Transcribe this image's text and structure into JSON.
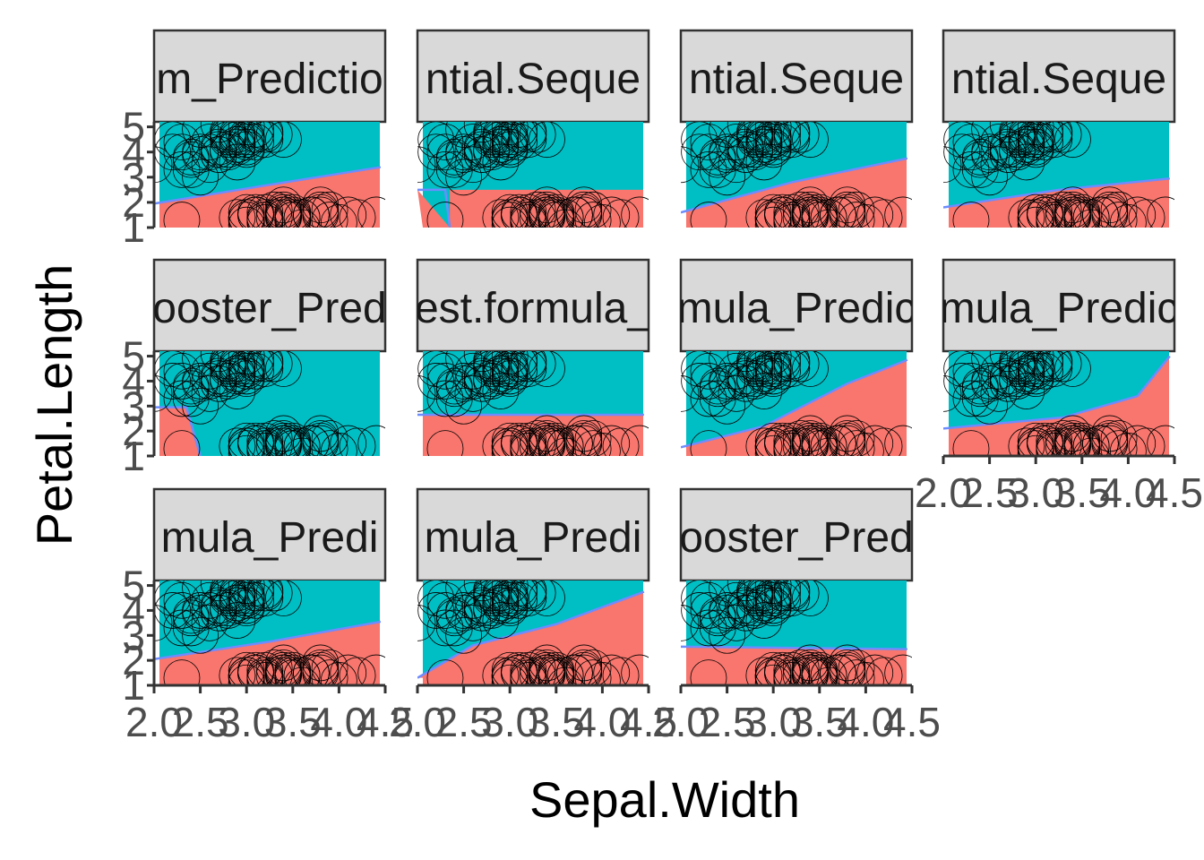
{
  "chart_data": {
    "type": "scatter",
    "xlabel": "Sepal.Width",
    "ylabel": "Petal.Length",
    "xlim": [
      2.0,
      4.5
    ],
    "ylim": [
      1,
      5.2
    ],
    "x_ticks": [
      "2.0",
      "2.5",
      "3.0",
      "3.5",
      "4.0",
      "4.5"
    ],
    "y_ticks": [
      "1",
      "2",
      "3",
      "4",
      "5"
    ],
    "colors": {
      "region_a": "#00BFC4",
      "region_b": "#F8766D",
      "boundary": "#6C8CFF",
      "strip": "#D9D9D9",
      "axis": "#333333",
      "tick_label": "#4D4D4D"
    },
    "points": [
      {
        "x": 3.5,
        "y": 1.4
      },
      {
        "x": 3.0,
        "y": 1.4
      },
      {
        "x": 3.2,
        "y": 1.3
      },
      {
        "x": 3.1,
        "y": 1.5
      },
      {
        "x": 3.6,
        "y": 1.4
      },
      {
        "x": 3.9,
        "y": 1.7
      },
      {
        "x": 3.4,
        "y": 1.4
      },
      {
        "x": 3.4,
        "y": 1.5
      },
      {
        "x": 2.9,
        "y": 1.4
      },
      {
        "x": 3.1,
        "y": 1.5
      },
      {
        "x": 3.7,
        "y": 1.5
      },
      {
        "x": 3.4,
        "y": 1.6
      },
      {
        "x": 3.0,
        "y": 1.4
      },
      {
        "x": 3.0,
        "y": 1.1
      },
      {
        "x": 4.0,
        "y": 1.2
      },
      {
        "x": 4.4,
        "y": 1.5
      },
      {
        "x": 3.9,
        "y": 1.3
      },
      {
        "x": 3.5,
        "y": 1.4
      },
      {
        "x": 3.8,
        "y": 1.7
      },
      {
        "x": 3.8,
        "y": 1.5
      },
      {
        "x": 3.4,
        "y": 1.7
      },
      {
        "x": 3.7,
        "y": 1.5
      },
      {
        "x": 3.6,
        "y": 1.0
      },
      {
        "x": 3.3,
        "y": 1.7
      },
      {
        "x": 3.4,
        "y": 1.9
      },
      {
        "x": 3.0,
        "y": 1.6
      },
      {
        "x": 3.4,
        "y": 1.6
      },
      {
        "x": 3.5,
        "y": 1.5
      },
      {
        "x": 3.4,
        "y": 1.4
      },
      {
        "x": 3.2,
        "y": 1.6
      },
      {
        "x": 3.1,
        "y": 1.6
      },
      {
        "x": 3.4,
        "y": 1.5
      },
      {
        "x": 4.1,
        "y": 1.5
      },
      {
        "x": 4.2,
        "y": 1.4
      },
      {
        "x": 3.1,
        "y": 1.5
      },
      {
        "x": 3.2,
        "y": 1.2
      },
      {
        "x": 3.5,
        "y": 1.3
      },
      {
        "x": 3.6,
        "y": 1.4
      },
      {
        "x": 3.0,
        "y": 1.3
      },
      {
        "x": 3.4,
        "y": 1.5
      },
      {
        "x": 3.5,
        "y": 1.3
      },
      {
        "x": 2.3,
        "y": 1.3
      },
      {
        "x": 3.2,
        "y": 1.3
      },
      {
        "x": 3.5,
        "y": 1.6
      },
      {
        "x": 3.8,
        "y": 1.9
      },
      {
        "x": 3.0,
        "y": 1.4
      },
      {
        "x": 3.8,
        "y": 1.6
      },
      {
        "x": 3.2,
        "y": 1.4
      },
      {
        "x": 3.7,
        "y": 1.5
      },
      {
        "x": 3.3,
        "y": 1.4
      },
      {
        "x": 3.2,
        "y": 4.7
      },
      {
        "x": 3.2,
        "y": 4.5
      },
      {
        "x": 3.1,
        "y": 4.9
      },
      {
        "x": 2.3,
        "y": 4.0
      },
      {
        "x": 2.8,
        "y": 4.6
      },
      {
        "x": 2.8,
        "y": 4.5
      },
      {
        "x": 3.3,
        "y": 4.7
      },
      {
        "x": 2.4,
        "y": 3.3
      },
      {
        "x": 2.9,
        "y": 4.6
      },
      {
        "x": 2.7,
        "y": 3.9
      },
      {
        "x": 2.0,
        "y": 3.5
      },
      {
        "x": 3.0,
        "y": 4.2
      },
      {
        "x": 2.2,
        "y": 4.0
      },
      {
        "x": 2.9,
        "y": 4.7
      },
      {
        "x": 2.9,
        "y": 3.6
      },
      {
        "x": 3.1,
        "y": 4.4
      },
      {
        "x": 3.0,
        "y": 4.5
      },
      {
        "x": 2.7,
        "y": 4.1
      },
      {
        "x": 2.2,
        "y": 4.5
      },
      {
        "x": 2.5,
        "y": 3.9
      },
      {
        "x": 3.2,
        "y": 4.8
      },
      {
        "x": 2.8,
        "y": 4.0
      },
      {
        "x": 2.5,
        "y": 4.9
      },
      {
        "x": 2.8,
        "y": 4.7
      },
      {
        "x": 2.9,
        "y": 4.3
      },
      {
        "x": 3.0,
        "y": 4.4
      },
      {
        "x": 2.8,
        "y": 4.8
      },
      {
        "x": 3.0,
        "y": 5.0
      },
      {
        "x": 2.9,
        "y": 4.5
      },
      {
        "x": 2.6,
        "y": 3.5
      },
      {
        "x": 2.4,
        "y": 3.8
      },
      {
        "x": 2.4,
        "y": 3.7
      },
      {
        "x": 2.7,
        "y": 3.9
      },
      {
        "x": 2.7,
        "y": 5.1
      },
      {
        "x": 3.0,
        "y": 4.5
      },
      {
        "x": 3.4,
        "y": 4.5
      },
      {
        "x": 3.1,
        "y": 4.7
      },
      {
        "x": 2.3,
        "y": 4.4
      },
      {
        "x": 3.0,
        "y": 4.1
      },
      {
        "x": 2.5,
        "y": 4.0
      },
      {
        "x": 2.6,
        "y": 4.4
      },
      {
        "x": 3.0,
        "y": 4.6
      },
      {
        "x": 2.6,
        "y": 4.0
      },
      {
        "x": 2.3,
        "y": 3.3
      },
      {
        "x": 2.7,
        "y": 4.2
      },
      {
        "x": 3.0,
        "y": 4.2
      },
      {
        "x": 2.9,
        "y": 4.2
      },
      {
        "x": 2.9,
        "y": 4.3
      },
      {
        "x": 2.5,
        "y": 3.0
      },
      {
        "x": 2.8,
        "y": 4.1
      }
    ],
    "facets": [
      {
        "label": "m_Predictio",
        "boundary": [
          [
            2.0,
            1.95
          ],
          [
            3.25,
            2.7
          ],
          [
            4.45,
            3.4
          ]
        ]
      },
      {
        "label": "ntial.Seque",
        "boundary": [
          [
            2.0,
            2.5
          ],
          [
            2.3,
            2.5
          ],
          [
            2.35,
            1.0
          ]
        ],
        "region_b_is_below": true
      },
      {
        "label": "ntial.Seque",
        "boundary": [
          [
            2.0,
            1.6
          ],
          [
            3.2,
            2.8
          ],
          [
            4.45,
            3.75
          ]
        ]
      },
      {
        "label": "ntial.Seque",
        "boundary": [
          [
            2.0,
            1.8
          ],
          [
            3.25,
            2.5
          ],
          [
            4.45,
            2.95
          ]
        ]
      },
      {
        "label": "ooster_Pred",
        "boundary": [
          [
            2.0,
            2.95
          ],
          [
            2.35,
            2.95
          ],
          [
            2.5,
            1.0
          ]
        ]
      },
      {
        "label": "est.formula_",
        "boundary": [
          [
            2.0,
            2.65
          ],
          [
            4.45,
            2.65
          ]
        ]
      },
      {
        "label": "mula_Predic",
        "boundary": [
          [
            2.0,
            1.35
          ],
          [
            2.9,
            2.2
          ],
          [
            3.8,
            3.9
          ],
          [
            4.45,
            4.85
          ]
        ]
      },
      {
        "label": "mula_Predic",
        "boundary": [
          [
            2.0,
            2.1
          ],
          [
            3.3,
            2.55
          ],
          [
            4.1,
            3.4
          ],
          [
            4.45,
            5.0
          ]
        ]
      },
      {
        "label": "mula_Predi",
        "boundary": [
          [
            2.0,
            2.05
          ],
          [
            3.25,
            2.75
          ],
          [
            4.45,
            3.55
          ]
        ]
      },
      {
        "label": "mula_Predi",
        "boundary": [
          [
            2.0,
            1.3
          ],
          [
            2.6,
            2.6
          ],
          [
            3.5,
            3.45
          ],
          [
            4.45,
            4.75
          ]
        ]
      },
      {
        "label": "ooster_Pred",
        "boundary": [
          [
            2.0,
            2.55
          ],
          [
            4.45,
            2.45
          ]
        ]
      }
    ]
  }
}
